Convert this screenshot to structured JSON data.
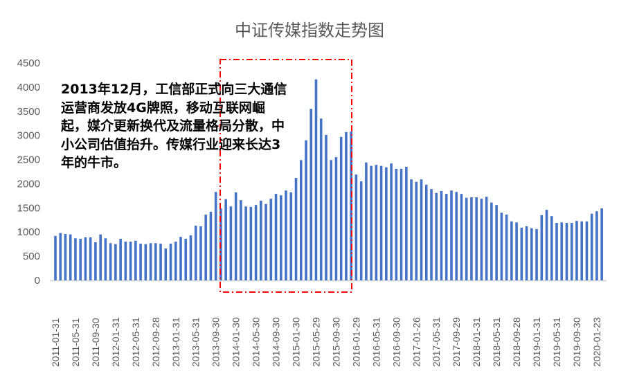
{
  "chart_data": {
    "type": "bar",
    "title": "中证传媒指数走势图",
    "xlabel": "",
    "ylabel": "",
    "ylim": [
      0,
      4500
    ],
    "y_ticks": [
      0,
      500,
      1000,
      1500,
      2000,
      2500,
      3000,
      3500,
      4000,
      4500
    ],
    "grid": false,
    "legend": "none",
    "bar_color": "#4472C4",
    "tick_every": 4,
    "x_tick_labels": [
      "2011-01-31",
      "2011-05-31",
      "2011-09-30",
      "2012-01-31",
      "2012-05-31",
      "2012-09-28",
      "2013-01-31",
      "2013-05-31",
      "2013-09-30",
      "2014-01-30",
      "2014-05-30",
      "2014-09-30",
      "2015-01-30",
      "2015-05-29",
      "2015-09-30",
      "2016-01-29",
      "2016-05-31",
      "2016-09-30",
      "2017-01-26",
      "2017-05-31",
      "2017-09-29",
      "2018-01-31",
      "2018-05-31",
      "2018-09-28",
      "2019-01-31",
      "2019-05-31",
      "2019-09-30",
      "2020-01-23"
    ],
    "values": [
      920,
      980,
      960,
      950,
      870,
      860,
      890,
      890,
      790,
      950,
      870,
      770,
      750,
      860,
      800,
      800,
      820,
      760,
      750,
      770,
      770,
      760,
      660,
      760,
      800,
      900,
      860,
      930,
      1130,
      1120,
      1360,
      1420,
      1830,
      1490,
      1680,
      1530,
      1820,
      1660,
      1530,
      1520,
      1560,
      1650,
      1580,
      1690,
      1790,
      1760,
      1860,
      1820,
      2120,
      2490,
      2900,
      3550,
      4160,
      3350,
      3010,
      2490,
      2550,
      2970,
      3070,
      3080,
      2190,
      2050,
      2440,
      2370,
      2390,
      2370,
      2340,
      2420,
      2310,
      2310,
      2350,
      2090,
      2040,
      2090,
      1980,
      1890,
      1810,
      1850,
      1790,
      1860,
      1830,
      1790,
      1710,
      1720,
      1720,
      1690,
      1730,
      1610,
      1560,
      1400,
      1360,
      1220,
      1200,
      1090,
      1120,
      1080,
      1060,
      1350,
      1460,
      1330,
      1190,
      1200,
      1190,
      1190,
      1230,
      1220,
      1220,
      1380,
      1430,
      1490
    ],
    "annotation": "2013年12月，工信部正式向三大通信运营商发放4G牌照，移动互联网崛起，媒介更新换代及流量格局分散，中小公司估值抬升。传媒行业迎来长达3年的牛市。",
    "highlight_box_color": "#FF0000"
  }
}
